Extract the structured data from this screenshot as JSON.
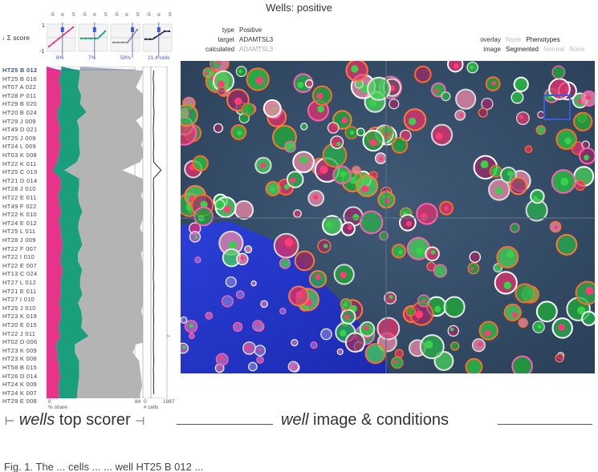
{
  "title": "Wells: positive",
  "score_label": "↓ Σ score",
  "score_axis": {
    "top": "1",
    "bottom": "-1"
  },
  "mini_charts": {
    "tick_labels": [
      "-5",
      "σ",
      "5",
      "-5",
      "σ",
      "5",
      "-5",
      "σ",
      "5",
      "-5",
      "σ",
      "5"
    ],
    "percent_labels": [
      "8%",
      "7%",
      "50%",
      "21.4 cells"
    ],
    "colors": [
      "#e8338a",
      "#1a9e7c",
      "#8c8c8c",
      "#1a2a3a"
    ]
  },
  "meta": {
    "type_label": "type",
    "type_value": "Positive",
    "target_label": "target",
    "target_value": "ADAMTSL3",
    "calculated_label": "calculated",
    "calculated_value": "ADAMTSL3"
  },
  "overlay": {
    "label": "overlay",
    "options": [
      "None",
      "Phenotypes"
    ],
    "active": "Phenotypes"
  },
  "image_mode": {
    "label": "image",
    "options": [
      "Segmented",
      "Normal",
      "None"
    ],
    "active": "Segmented"
  },
  "rows": [
    "HT25 B 012",
    "HT25 B 016",
    "HT07 A 022",
    "HT28 P 011",
    "HT29 B 020",
    "HT20 B 024",
    "HT29 J 009",
    "HT49 D 021",
    "HT25 J 009",
    "HT24 L 009",
    "HT03 K 008",
    "HT22 K 011",
    "HT25 C 019",
    "HT21 D 014",
    "HT28 J 010",
    "HT22 E 011",
    "HT49 F 022",
    "HT22 K 010",
    "HT24 E 012",
    "HT25 L 011",
    "HT28 J 009",
    "HT22 F 007",
    "HT22 I 010",
    "HT22 E 007",
    "HT13 C 024",
    "HT27 L 012",
    "HT21 E 011",
    "HT27 I 010",
    "HT25 J 010",
    "HT23 K 019",
    "HT20 E 015",
    "HT22 J 011",
    "HT02 D 006",
    "HT23 K 009",
    "HT23 K 008",
    "HT58 B 015",
    "HT26 D 014",
    "HT24 K 009",
    "HT24 K 007",
    "HT29 E 008"
  ],
  "selected_row": "HT25 B 012",
  "chart_data": {
    "type": "area",
    "categories": [
      "HT25 B 012",
      "HT25 B 016",
      "HT07 A 022",
      "HT28 P 011",
      "HT29 B 020",
      "HT20 B 024",
      "HT29 J 009",
      "HT49 D 021",
      "HT25 J 009",
      "HT24 L 009",
      "HT03 K 008",
      "HT22 K 011",
      "HT25 C 019",
      "HT21 D 014",
      "HT28 J 010",
      "HT22 E 011",
      "HT49 F 022",
      "HT22 K 010",
      "HT24 E 012",
      "HT25 L 011",
      "HT28 J 009",
      "HT22 F 007",
      "HT22 I 010",
      "HT22 E 007",
      "HT13 C 024",
      "HT27 L 012",
      "HT21 E 011",
      "HT27 I 010",
      "HT25 J 010",
      "HT23 K 019",
      "HT20 E 015",
      "HT22 J 011",
      "HT02 D 006",
      "HT23 K 009",
      "HT23 K 008",
      "HT58 B 015",
      "HT26 D 014",
      "HT24 K 009",
      "HT24 K 007",
      "HT29 E 008"
    ],
    "series": [
      {
        "values": [
          14,
          12,
          13,
          14,
          13,
          10,
          11,
          13,
          12,
          13,
          12,
          10,
          6,
          13,
          14,
          11,
          12,
          14,
          12,
          13,
          14,
          15,
          14,
          13,
          15,
          14,
          13,
          14,
          12,
          14,
          13,
          11,
          13,
          9,
          10,
          11,
          12,
          13,
          11,
          12
        ]
      },
      {
        "values": [
          18,
          19,
          17,
          19,
          19,
          28,
          18,
          18,
          19,
          18,
          20,
          19,
          11,
          18,
          17,
          19,
          19,
          20,
          19,
          17,
          18,
          19,
          16,
          17,
          19,
          18,
          19,
          20,
          18,
          19,
          21,
          22,
          27,
          18,
          17,
          20,
          19,
          18,
          19,
          17
        ]
      },
      {
        "values": [
          60,
          58,
          55,
          60,
          62,
          58,
          56,
          60,
          61,
          59,
          62,
          60,
          55,
          60,
          62,
          60,
          61,
          63,
          60,
          59,
          61,
          60,
          60,
          61,
          64,
          60,
          61,
          62,
          62,
          57,
          58,
          64,
          78,
          58,
          55,
          57,
          58,
          59,
          61,
          60
        ]
      },
      {
        "values": [
          900,
          850,
          910,
          880,
          870,
          920,
          890,
          860,
          880,
          900,
          870,
          890,
          1500,
          880,
          870,
          900,
          880,
          890,
          870,
          900,
          880,
          890,
          870,
          900,
          880,
          860,
          910,
          880,
          890,
          870,
          900,
          880,
          890,
          870,
          880,
          910,
          870,
          890,
          880,
          900
        ]
      }
    ],
    "xlim": [
      0,
      84
    ],
    "xlabel": "% share",
    "cells_xlim": [
      0,
      1987
    ],
    "cells_label": "# cells",
    "x_tick_labels": [
      "0",
      "84",
      "0",
      "1987"
    ]
  },
  "caption": {
    "left_italic": "wells",
    "left_rest": " top scorer",
    "right_italic": "well",
    "right_rest": " image & conditions"
  },
  "footer": "Fig. 1. The ... cells ... ... well HT25 B 012 ..."
}
